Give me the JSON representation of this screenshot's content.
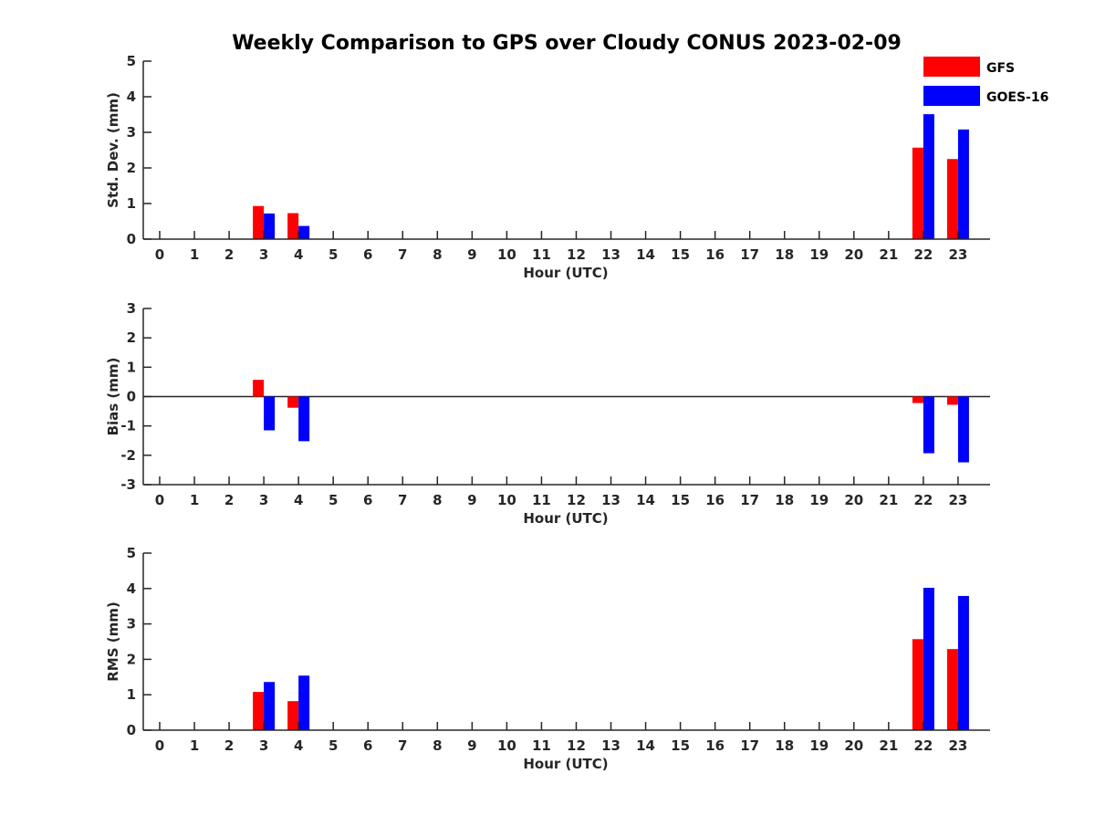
{
  "title": "Weekly Comparison to GPS over Cloudy CONUS 2023-02-09",
  "legend": [
    {
      "label": "GFS",
      "color": "#ff0000"
    },
    {
      "label": "GOES-16",
      "color": "#0000ff"
    }
  ],
  "chart_data": [
    {
      "type": "bar",
      "xlabel": "Hour (UTC)",
      "ylabel": "Std. Dev. (mm)",
      "ylim": [
        0,
        5
      ],
      "yticks": [
        0,
        1,
        2,
        3,
        4,
        5
      ],
      "categories": [
        "0",
        "1",
        "2",
        "3",
        "4",
        "5",
        "6",
        "7",
        "8",
        "9",
        "10",
        "11",
        "12",
        "13",
        "14",
        "15",
        "16",
        "17",
        "18",
        "19",
        "20",
        "21",
        "22",
        "23"
      ],
      "series": [
        {
          "name": "GFS",
          "color": "#ff0000",
          "values": [
            0,
            0,
            0,
            0.93,
            0.73,
            0,
            0,
            0,
            0,
            0,
            0,
            0,
            0,
            0,
            0,
            0,
            0,
            0,
            0,
            0,
            0,
            0,
            2.57,
            2.25
          ]
        },
        {
          "name": "GOES-16",
          "color": "#0000ff",
          "values": [
            0,
            0,
            0,
            0.72,
            0.37,
            0,
            0,
            0,
            0,
            0,
            0,
            0,
            0,
            0,
            0,
            0,
            0,
            0,
            0,
            0,
            0,
            0,
            3.51,
            3.08
          ]
        }
      ],
      "grid": false
    },
    {
      "type": "bar",
      "xlabel": "Hour (UTC)",
      "ylabel": "Bias (mm)",
      "ylim": [
        -3,
        3
      ],
      "yticks": [
        -3,
        -2,
        -1,
        0,
        1,
        2,
        3
      ],
      "zero_line": true,
      "categories": [
        "0",
        "1",
        "2",
        "3",
        "4",
        "5",
        "6",
        "7",
        "8",
        "9",
        "10",
        "11",
        "12",
        "13",
        "14",
        "15",
        "16",
        "17",
        "18",
        "19",
        "20",
        "21",
        "22",
        "23"
      ],
      "series": [
        {
          "name": "GFS",
          "color": "#ff0000",
          "values": [
            0,
            0,
            0,
            0.57,
            -0.38,
            0,
            0,
            0,
            0,
            0,
            0,
            0,
            0,
            0,
            0,
            0,
            0,
            0,
            0,
            0,
            0,
            0,
            -0.22,
            -0.28
          ]
        },
        {
          "name": "GOES-16",
          "color": "#0000ff",
          "values": [
            0,
            0,
            0,
            -1.15,
            -1.52,
            0,
            0,
            0,
            0,
            0,
            0,
            0,
            0,
            0,
            0,
            0,
            0,
            0,
            0,
            0,
            0,
            0,
            -1.93,
            -2.24
          ]
        }
      ],
      "grid": false
    },
    {
      "type": "bar",
      "xlabel": "Hour (UTC)",
      "ylabel": "RMS (mm)",
      "ylim": [
        0,
        5
      ],
      "yticks": [
        0,
        1,
        2,
        3,
        4,
        5
      ],
      "categories": [
        "0",
        "1",
        "2",
        "3",
        "4",
        "5",
        "6",
        "7",
        "8",
        "9",
        "10",
        "11",
        "12",
        "13",
        "14",
        "15",
        "16",
        "17",
        "18",
        "19",
        "20",
        "21",
        "22",
        "23"
      ],
      "series": [
        {
          "name": "GFS",
          "color": "#ff0000",
          "values": [
            0,
            0,
            0,
            1.08,
            0.82,
            0,
            0,
            0,
            0,
            0,
            0,
            0,
            0,
            0,
            0,
            0,
            0,
            0,
            0,
            0,
            0,
            0,
            2.57,
            2.29
          ]
        },
        {
          "name": "GOES-16",
          "color": "#0000ff",
          "values": [
            0,
            0,
            0,
            1.36,
            1.54,
            0,
            0,
            0,
            0,
            0,
            0,
            0,
            0,
            0,
            0,
            0,
            0,
            0,
            0,
            0,
            0,
            0,
            4.02,
            3.79
          ]
        }
      ],
      "grid": false
    }
  ]
}
